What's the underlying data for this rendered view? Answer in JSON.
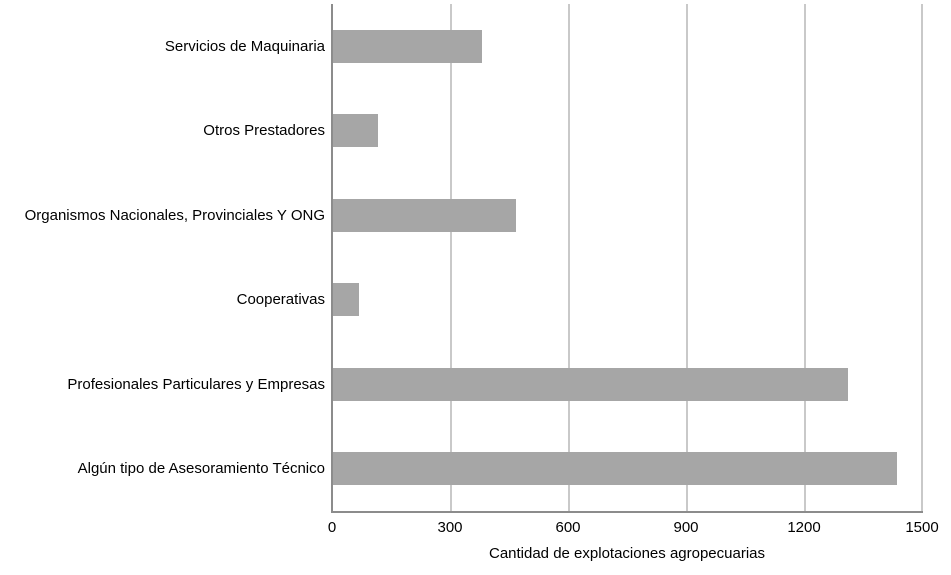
{
  "chart_data": {
    "type": "bar",
    "orientation": "horizontal",
    "title": "",
    "xlabel": "Cantidad de explotaciones agropecuarias",
    "ylabel": "",
    "categories": [
      "Servicios de Maquinaria",
      "Otros Prestadores",
      "Organismos Nacionales, Provinciales Y ONG",
      "Cooperativas",
      "Profesionales Particulares y Empresas",
      "Algún tipo de Asesoramiento Técnico"
    ],
    "values": [
      380,
      115,
      465,
      65,
      1310,
      1435
    ],
    "xlim": [
      0,
      1500
    ],
    "xticks": [
      0,
      300,
      600,
      900,
      1200,
      1500
    ],
    "grid": "vertical",
    "legend": "none",
    "colors": {
      "bar": "#a6a6a6",
      "gridline": "#c9c9c9",
      "axis": "#8c8c8c",
      "text": "#000000",
      "background": "#ffffff"
    }
  }
}
